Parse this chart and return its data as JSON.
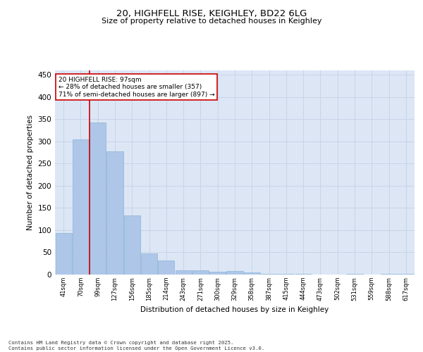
{
  "title1": "20, HIGHFELL RISE, KEIGHLEY, BD22 6LG",
  "title2": "Size of property relative to detached houses in Keighley",
  "xlabel": "Distribution of detached houses by size in Keighley",
  "ylabel": "Number of detached properties",
  "categories": [
    "41sqm",
    "70sqm",
    "99sqm",
    "127sqm",
    "156sqm",
    "185sqm",
    "214sqm",
    "243sqm",
    "271sqm",
    "300sqm",
    "329sqm",
    "358sqm",
    "387sqm",
    "415sqm",
    "444sqm",
    "473sqm",
    "502sqm",
    "531sqm",
    "559sqm",
    "588sqm",
    "617sqm"
  ],
  "values": [
    93,
    305,
    343,
    278,
    133,
    47,
    31,
    9,
    9,
    7,
    8,
    4,
    1,
    2,
    1,
    0,
    0,
    1,
    0,
    1,
    2
  ],
  "bar_color": "#aec6e8",
  "bar_edge_color": "#8ab4d8",
  "grid_color": "#c8d4e8",
  "background_color": "#dce6f5",
  "vline_color": "#cc0000",
  "annotation_text": "20 HIGHFELL RISE: 97sqm\n← 28% of detached houses are smaller (357)\n71% of semi-detached houses are larger (897) →",
  "annotation_box_color": "#cc0000",
  "footer": "Contains HM Land Registry data © Crown copyright and database right 2025.\nContains public sector information licensed under the Open Government Licence v3.0.",
  "ylim": [
    0,
    460
  ],
  "yticks": [
    0,
    50,
    100,
    150,
    200,
    250,
    300,
    350,
    400,
    450
  ],
  "fig_width": 6.0,
  "fig_height": 5.0,
  "dpi": 100
}
